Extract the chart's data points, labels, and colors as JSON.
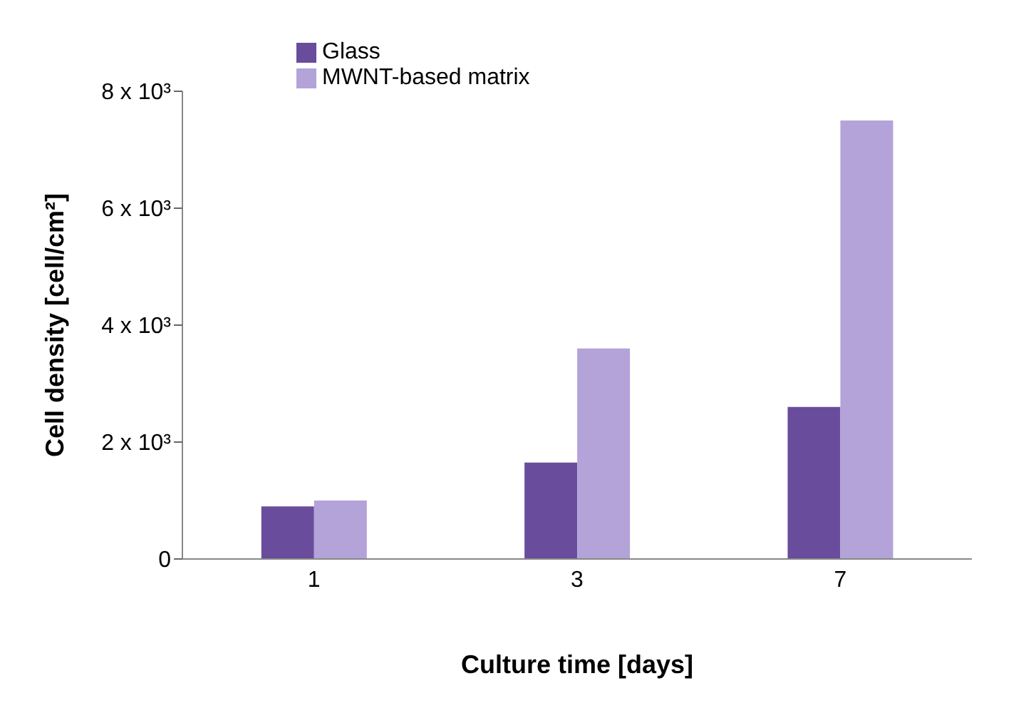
{
  "chart_data": {
    "type": "bar",
    "xlabel": "Culture time [days]",
    "ylabel": "Cell density [cell/cm²]",
    "categories": [
      "1",
      "3",
      "7"
    ],
    "series": [
      {
        "name": "Glass",
        "color": "#6a4c9c",
        "values": [
          900,
          1650,
          2600
        ]
      },
      {
        "name": "MWNT-based matrix",
        "color": "#b3a3d9",
        "values": [
          1000,
          3600,
          7500
        ]
      }
    ],
    "ylim": [
      0,
      8000
    ],
    "yticks": [
      {
        "value": 0,
        "label": "0"
      },
      {
        "value": 2000,
        "label": "2 x 10³"
      },
      {
        "value": 4000,
        "label": "4 x 10³"
      },
      {
        "value": 6000,
        "label": "6 x 10³"
      },
      {
        "value": 8000,
        "label": "8 x 10³"
      }
    ],
    "grid": false,
    "legend": "top left"
  }
}
